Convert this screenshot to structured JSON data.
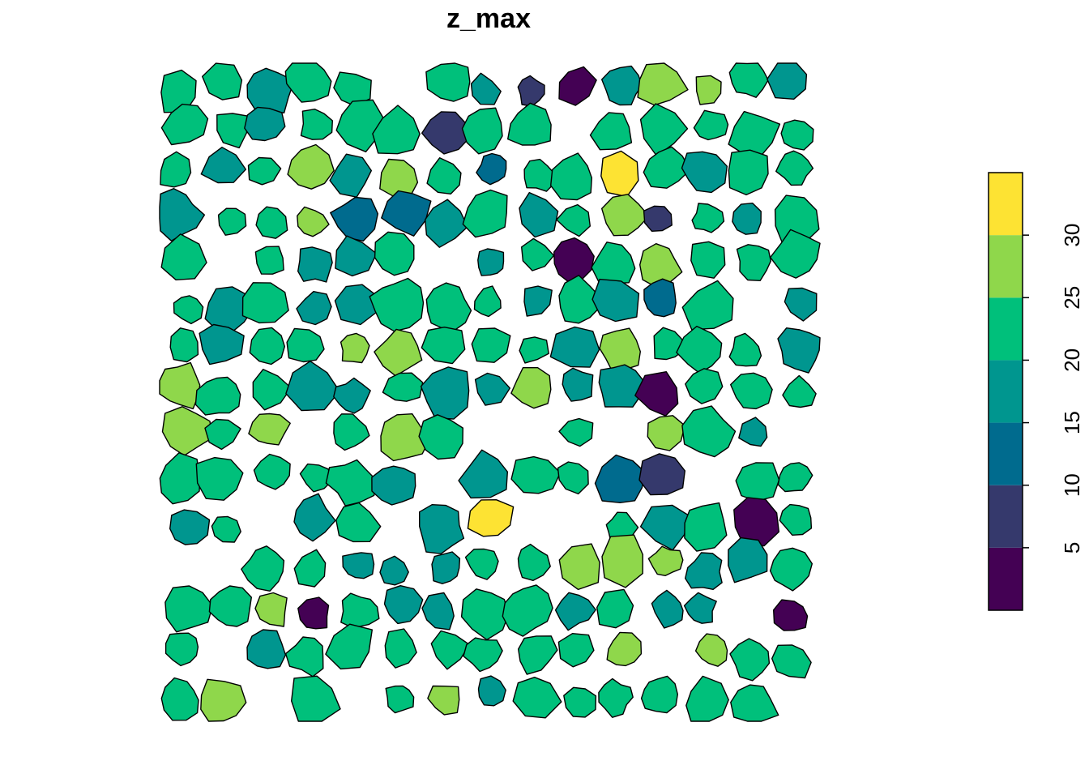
{
  "title": "z_max",
  "chart_data": {
    "type": "choropleth",
    "variable": "z_max",
    "legend": {
      "placement": "right",
      "breaks": [
        0,
        5,
        10,
        15,
        20,
        25,
        30,
        35
      ],
      "colors": [
        "#440154",
        "#35396C",
        "#006B8E",
        "#00968F",
        "#00C07B",
        "#8FD74B",
        "#FDE333"
      ],
      "tick_values": [
        5,
        10,
        15,
        20,
        25,
        30
      ],
      "tick_labels": [
        "5",
        "10",
        "15",
        "20",
        "25",
        "30"
      ]
    },
    "polygon_colors_note": "crown polygons colored by z_max class",
    "class_counts": {
      "0-5": 6,
      "5-10": 4,
      "10-15": 5,
      "15-20": 60,
      "20-25": 130,
      "25-30": 28,
      "30-35": 2
    }
  }
}
